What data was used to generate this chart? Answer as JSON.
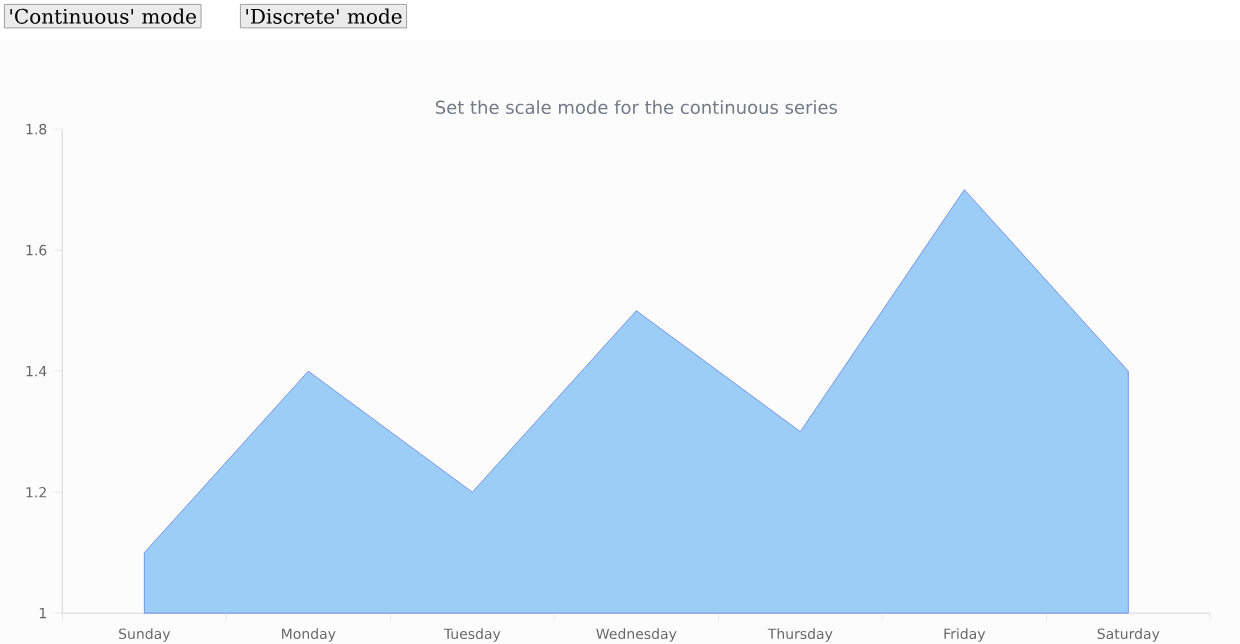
{
  "chart_data": {
    "type": "area",
    "title": "Set the scale mode for the continuous series",
    "categories": [
      "Sunday",
      "Monday",
      "Tuesday",
      "Wednesday",
      "Thursday",
      "Friday",
      "Saturday"
    ],
    "series": [
      {
        "color": "#9ccdf7",
        "values": [
          1.1,
          1.4,
          1.2,
          1.5,
          1.3,
          1.7,
          1.4
        ]
      }
    ],
    "ylim": [
      1,
      1.8
    ],
    "yticks": [
      1,
      1.2,
      1.4,
      1.6,
      1.8
    ],
    "grid": false,
    "annotations": [
      "'Continuous' mode",
      "'Discrete' mode"
    ]
  }
}
